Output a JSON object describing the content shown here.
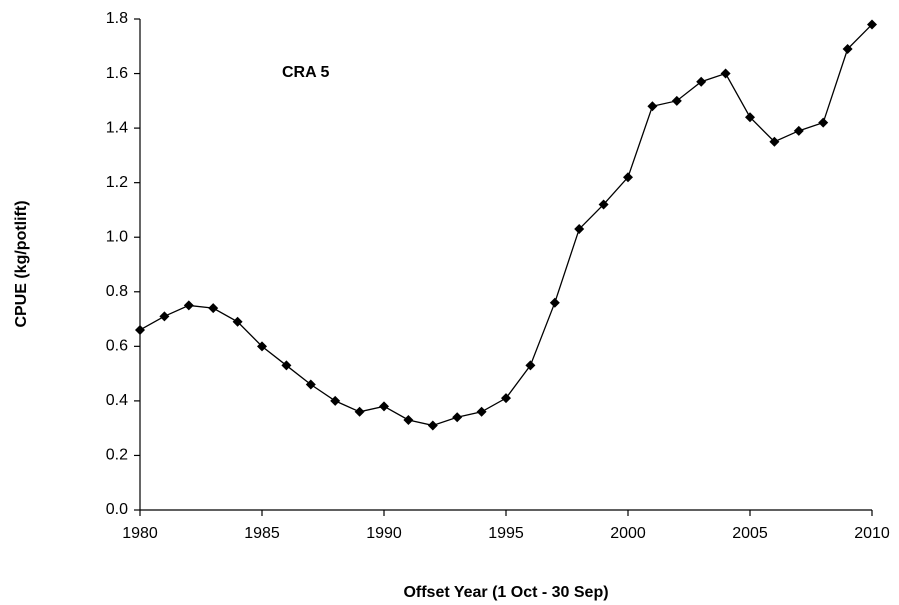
{
  "chart_data": {
    "type": "line",
    "annotation": "CRA 5",
    "xlabel": "Offset Year (1 Oct - 30 Sep)",
    "ylabel": "CPUE (kg/potlift)",
    "x": [
      1980,
      1981,
      1982,
      1983,
      1984,
      1985,
      1986,
      1987,
      1988,
      1989,
      1990,
      1991,
      1992,
      1993,
      1994,
      1995,
      1996,
      1997,
      1998,
      1999,
      2000,
      2001,
      2002,
      2003,
      2004,
      2005,
      2006,
      2007,
      2008,
      2009,
      2010
    ],
    "values": [
      0.66,
      0.71,
      0.75,
      0.74,
      0.69,
      0.6,
      0.53,
      0.46,
      0.4,
      0.36,
      0.38,
      0.33,
      0.31,
      0.34,
      0.36,
      0.41,
      0.53,
      0.76,
      1.03,
      1.12,
      1.22,
      1.48,
      1.5,
      1.57,
      1.6,
      1.44,
      1.35,
      1.39,
      1.42,
      1.69,
      1.78
    ],
    "color": "#000000",
    "xlim": [
      1980,
      2010
    ],
    "xticks": [
      1980,
      1985,
      1990,
      1995,
      2000,
      2005,
      2010
    ],
    "ylim": [
      0,
      1.8
    ],
    "yticks": [
      {
        "value": 0,
        "label": "0.0"
      },
      0.2,
      0.4,
      0.6,
      0.8,
      {
        "value": 1,
        "label": "1.0"
      },
      1.2,
      1.4,
      1.6,
      1.8
    ],
    "grid": false
  }
}
